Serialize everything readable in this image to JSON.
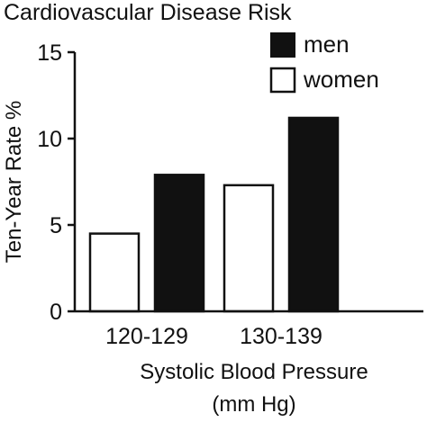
{
  "chart_data": {
    "type": "bar",
    "title": "Cardiovascular Disease Risk",
    "xlabel": "Systolic Blood Pressure",
    "xlabel_unit": "(mm Hg)",
    "ylabel": "Ten-Year Rate %",
    "ylim": [
      0,
      15
    ],
    "yticks": [
      "0",
      "5",
      "10",
      "15"
    ],
    "categories": [
      "120-129",
      "130-139"
    ],
    "series": [
      {
        "name": "women",
        "color": "#ffffff",
        "values": [
          4.5,
          7.3
        ]
      },
      {
        "name": "men",
        "color": "#111111",
        "values": [
          7.9,
          11.2
        ]
      }
    ],
    "legend": {
      "position": "top-right",
      "order": [
        "men",
        "women"
      ]
    },
    "grid": false
  }
}
